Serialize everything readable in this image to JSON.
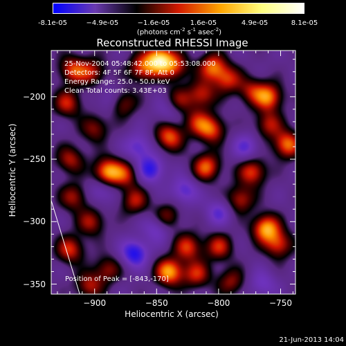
{
  "colorbar": {
    "ticks": [
      "-8.1e-05",
      "−4.9e-05",
      "−1.6e-05",
      "1.6e-05",
      "4.9e-05",
      "8.1e-05"
    ],
    "tick_values": [
      -8.1e-05,
      -4.9e-05,
      -1.6e-05,
      1.6e-05,
      4.9e-05,
      8.1e-05
    ],
    "units_main": "(photons cm",
    "units_exp1": "-2",
    "units_mid": " s",
    "units_exp2": "-1",
    "units_after": " asec",
    "units_exp3": "-2",
    "units_close": ")",
    "colors": [
      "#0000ff",
      "#6a3ab0",
      "#000000",
      "#d21a00",
      "#ffa500",
      "#ffff80",
      "#ffffff"
    ]
  },
  "chart_data": {
    "type": "heatmap",
    "title": "Reconstructed RHESSI Image",
    "xlabel": "Heliocentric X (arcsec)",
    "ylabel": "Heliocentric Y (arcsec)",
    "xlim": [
      -935,
      -738
    ],
    "ylim": [
      -358,
      -163
    ],
    "xticks": [
      -900,
      -850,
      -800,
      -750
    ],
    "yticks": [
      -200,
      -250,
      -300,
      -350
    ],
    "xtick_labels": [
      "−900",
      "−850",
      "−800",
      "−750"
    ],
    "ytick_labels": [
      "−200",
      "−250",
      "−300",
      "−350"
    ],
    "colorbar_range": [
      -8.1e-05,
      8.1e-05
    ],
    "peak": {
      "x": -843,
      "y": -170
    },
    "info_lines": [
      "25-Nov-2004 05:48:42.000 to 05:53:08.000",
      "Detectors: 4F 5F 6F 7F 8F, Att 0",
      "Energy Range: 25.0 - 50.0 keV",
      "Clean    Total counts: 3.43E+03"
    ],
    "peak_label": "Position of Peak = [-843,-170]",
    "limb_line": {
      "x": [
        -935,
        -912
      ],
      "y": [
        -283,
        -358
      ]
    },
    "blobs": [
      {
        "x": -848,
        "y": -170,
        "v": 1.0
      },
      {
        "x": -862,
        "y": -177,
        "v": 0.6
      },
      {
        "x": -835,
        "y": -176,
        "v": 0.55
      },
      {
        "x": -918,
        "y": -178,
        "v": 0.6
      },
      {
        "x": -902,
        "y": -180,
        "v": 0.5
      },
      {
        "x": -805,
        "y": -176,
        "v": 0.7
      },
      {
        "x": -793,
        "y": -186,
        "v": 0.55
      },
      {
        "x": -760,
        "y": -200,
        "v": 0.75
      },
      {
        "x": -774,
        "y": -195,
        "v": 0.45
      },
      {
        "x": -814,
        "y": -198,
        "v": 0.55
      },
      {
        "x": -922,
        "y": -205,
        "v": 0.55
      },
      {
        "x": -878,
        "y": -205,
        "v": 0.5
      },
      {
        "x": -833,
        "y": -203,
        "v": 0.45
      },
      {
        "x": -900,
        "y": -225,
        "v": 0.45
      },
      {
        "x": -840,
        "y": -232,
        "v": 0.7
      },
      {
        "x": -806,
        "y": -226,
        "v": 0.65
      },
      {
        "x": -818,
        "y": -220,
        "v": 0.45
      },
      {
        "x": -745,
        "y": -238,
        "v": 0.75
      },
      {
        "x": -760,
        "y": -222,
        "v": 0.5
      },
      {
        "x": -920,
        "y": -250,
        "v": 0.5
      },
      {
        "x": -890,
        "y": -260,
        "v": 0.85
      },
      {
        "x": -875,
        "y": -262,
        "v": 0.5
      },
      {
        "x": -810,
        "y": -256,
        "v": 0.7
      },
      {
        "x": -773,
        "y": -260,
        "v": 0.65
      },
      {
        "x": -868,
        "y": -283,
        "v": 0.5
      },
      {
        "x": -917,
        "y": -280,
        "v": 0.5
      },
      {
        "x": -783,
        "y": -282,
        "v": 0.55
      },
      {
        "x": -842,
        "y": -296,
        "v": 0.45
      },
      {
        "x": -903,
        "y": -300,
        "v": 0.5
      },
      {
        "x": -762,
        "y": -305,
        "v": 0.85
      },
      {
        "x": -752,
        "y": -318,
        "v": 0.6
      },
      {
        "x": -920,
        "y": -322,
        "v": 0.6
      },
      {
        "x": -825,
        "y": -320,
        "v": 0.6
      },
      {
        "x": -800,
        "y": -320,
        "v": 0.55
      },
      {
        "x": -890,
        "y": -338,
        "v": 0.45
      },
      {
        "x": -840,
        "y": -340,
        "v": 0.85
      },
      {
        "x": -818,
        "y": -342,
        "v": 0.55
      },
      {
        "x": -905,
        "y": -351,
        "v": 0.5
      },
      {
        "x": -790,
        "y": -348,
        "v": 0.45
      },
      {
        "x": -855,
        "y": -258,
        "v": -0.6
      },
      {
        "x": -865,
        "y": -240,
        "v": -0.45
      },
      {
        "x": -868,
        "y": -325,
        "v": -0.65
      },
      {
        "x": -895,
        "y": -275,
        "v": -0.35
      },
      {
        "x": -828,
        "y": -275,
        "v": -0.45
      },
      {
        "x": -778,
        "y": -240,
        "v": -0.4
      },
      {
        "x": -765,
        "y": -350,
        "v": -0.35
      },
      {
        "x": -850,
        "y": -305,
        "v": -0.4
      },
      {
        "x": -800,
        "y": -292,
        "v": -0.4
      },
      {
        "x": -888,
        "y": -202,
        "v": -0.3
      },
      {
        "x": -840,
        "y": -210,
        "v": -0.3
      }
    ]
  },
  "timestamp": "21-Jun-2013 14:04"
}
